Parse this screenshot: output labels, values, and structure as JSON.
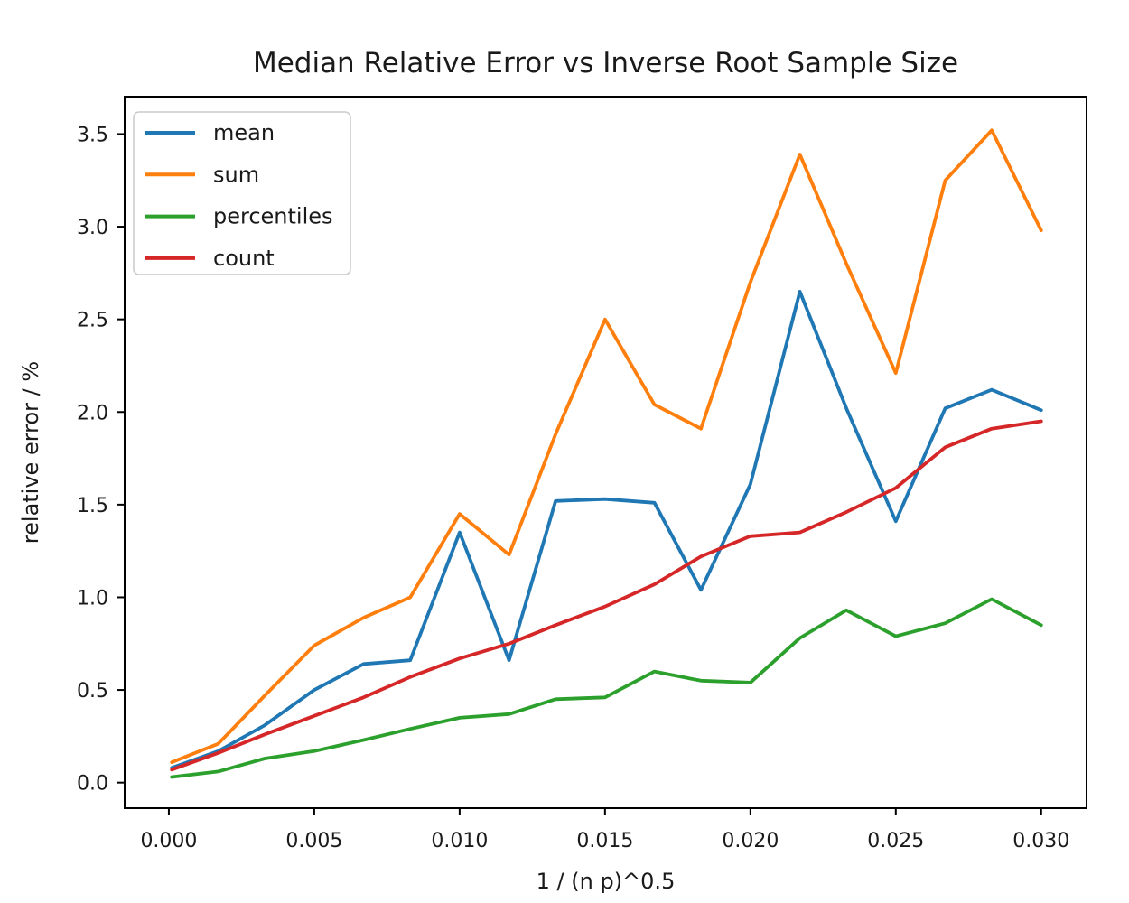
{
  "figure": {
    "title": "Median Relative Error vs Inverse Root Sample Size",
    "xlabel": "1 / (n p)^0.5",
    "ylabel": "relative error / %"
  },
  "chart_data": {
    "type": "line",
    "title": "Median Relative Error vs Inverse Root Sample Size",
    "xlabel": "1 / (n p)^0.5",
    "ylabel": "relative error / %",
    "grid": false,
    "legend_position": "upper left",
    "xlim": [
      -0.00152,
      0.03156
    ],
    "ylim": [
      -0.138,
      3.702
    ],
    "x_ticks": [
      0.0,
      0.005,
      0.01,
      0.015,
      0.02,
      0.025,
      0.03
    ],
    "x_tick_labels": [
      "0.000",
      "0.005",
      "0.010",
      "0.015",
      "0.020",
      "0.025",
      "0.030"
    ],
    "y_ticks": [
      0.0,
      0.5,
      1.0,
      1.5,
      2.0,
      2.5,
      3.0,
      3.5
    ],
    "y_tick_labels": [
      "0.0",
      "0.5",
      "1.0",
      "1.5",
      "2.0",
      "2.5",
      "3.0",
      "3.5"
    ],
    "x": [
      0.0001,
      0.0017,
      0.0033,
      0.005,
      0.0067,
      0.0083,
      0.01,
      0.0117,
      0.0133,
      0.015,
      0.0167,
      0.0183,
      0.02,
      0.0217,
      0.0233,
      0.025,
      0.0267,
      0.0283,
      0.03
    ],
    "series": [
      {
        "name": "mean",
        "color": "#1f77b4",
        "values": [
          0.08,
          0.17,
          0.31,
          0.5,
          0.64,
          0.66,
          1.35,
          0.66,
          1.52,
          1.53,
          1.51,
          1.04,
          1.61,
          2.65,
          2.02,
          1.41,
          2.02,
          2.12,
          2.01
        ]
      },
      {
        "name": "sum",
        "color": "#ff7f0e",
        "values": [
          0.11,
          0.21,
          0.47,
          0.74,
          0.89,
          1.0,
          1.45,
          1.23,
          1.88,
          2.5,
          2.04,
          1.91,
          2.7,
          3.39,
          2.8,
          2.21,
          3.25,
          3.52,
          2.98
        ]
      },
      {
        "name": "percentiles",
        "color": "#2ca02c",
        "values": [
          0.03,
          0.06,
          0.13,
          0.17,
          0.23,
          0.29,
          0.35,
          0.37,
          0.45,
          0.46,
          0.6,
          0.55,
          0.54,
          0.78,
          0.93,
          0.79,
          0.86,
          0.99,
          0.85
        ]
      },
      {
        "name": "count",
        "color": "#d62728",
        "values": [
          0.07,
          0.16,
          0.26,
          0.36,
          0.46,
          0.57,
          0.67,
          0.75,
          0.85,
          0.95,
          1.07,
          1.22,
          1.33,
          1.35,
          1.46,
          1.59,
          1.81,
          1.91,
          1.95
        ]
      }
    ]
  },
  "style": {
    "spine_color": "#000000",
    "tick_color": "#000000",
    "legend_border_color": "#cccccc",
    "background": "#ffffff"
  }
}
